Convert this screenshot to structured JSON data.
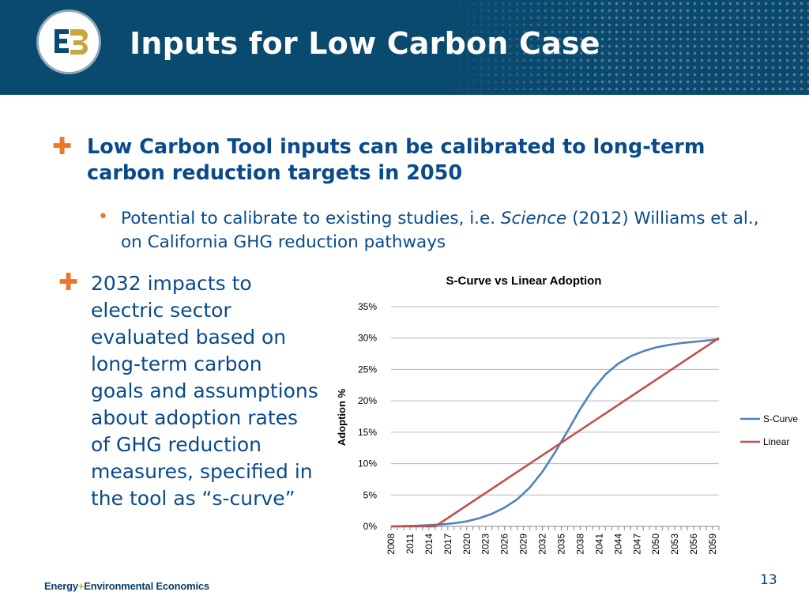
{
  "header": {
    "title": "Inputs for Low Carbon Case",
    "logo": "E3 logo"
  },
  "bullets": {
    "main_1": "Low Carbon Tool inputs can be calibrated to long-term carbon reduction targets in 2050",
    "sub_1_pre": "Potential to calibrate to existing studies, i.e. ",
    "sub_1_em": "Science",
    "sub_1_post": " (2012) Williams et al., on California GHG reduction pathways",
    "main_2": "2032 impacts to electric sector evaluated based on long-term carbon goals and assumptions about adoption rates of GHG reduction measures, specified in the tool as “s-curve”"
  },
  "chart_data": {
    "type": "line",
    "title": "S-Curve vs Linear Adoption",
    "xlabel": "",
    "ylabel": "Adoption %",
    "ylim": [
      0,
      0.35
    ],
    "yticks": [
      "0%",
      "5%",
      "10%",
      "15%",
      "20%",
      "25%",
      "30%",
      "35%"
    ],
    "x_start": 2008,
    "x_end": 2060,
    "xtick_labels": [
      "2008",
      "2011",
      "2014",
      "2017",
      "2020",
      "2023",
      "2026",
      "2029",
      "2032",
      "2035",
      "2038",
      "2041",
      "2044",
      "2047",
      "2050",
      "2053",
      "2056",
      "2059"
    ],
    "grid": true,
    "legend_position": "right",
    "series": [
      {
        "name": "S-Curve",
        "color": "#4f81bd",
        "x": [
          2008,
          2010,
          2012,
          2014,
          2016,
          2018,
          2020,
          2022,
          2024,
          2026,
          2028,
          2030,
          2032,
          2034,
          2036,
          2038,
          2040,
          2042,
          2044,
          2046,
          2048,
          2050,
          2052,
          2054,
          2056,
          2058,
          2060
        ],
        "y": [
          0,
          0.0005,
          0.001,
          0.002,
          0.003,
          0.005,
          0.008,
          0.013,
          0.02,
          0.03,
          0.043,
          0.062,
          0.087,
          0.118,
          0.152,
          0.187,
          0.218,
          0.242,
          0.259,
          0.271,
          0.279,
          0.285,
          0.289,
          0.292,
          0.294,
          0.296,
          0.298
        ]
      },
      {
        "name": "Linear",
        "color": "#c0504d",
        "x": [
          2008,
          2015,
          2060
        ],
        "y": [
          0,
          0,
          0.3
        ]
      }
    ]
  },
  "footer": {
    "brand_left": "Energy",
    "brand_plus": "+",
    "brand_right": "Environmental Economics",
    "page": "13"
  }
}
